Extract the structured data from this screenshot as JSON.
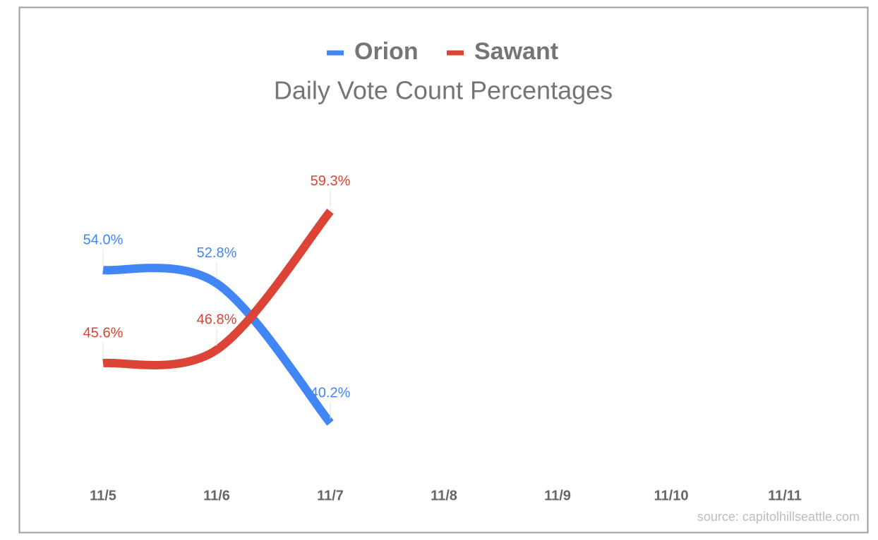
{
  "chart_data": {
    "type": "line",
    "title": "Daily Vote Count Percentages",
    "categories": [
      "11/5",
      "11/6",
      "11/7",
      "11/8",
      "11/9",
      "11/10",
      "11/11"
    ],
    "series": [
      {
        "name": "Orion",
        "color": "#4285f4",
        "values": [
          54.0,
          52.8,
          40.2,
          null,
          null,
          null,
          null
        ],
        "value_labels": [
          "54.0%",
          "52.8%",
          "40.2%",
          null,
          null,
          null,
          null
        ]
      },
      {
        "name": "Sawant",
        "color": "#db4437",
        "values": [
          45.6,
          46.8,
          59.3,
          null,
          null,
          null,
          null
        ],
        "value_labels": [
          "45.6%",
          "46.8%",
          "59.3%",
          null,
          null,
          null,
          null
        ]
      }
    ],
    "ylim": [
      36,
      68
    ],
    "source": "source: capitolhillseattle.com"
  }
}
